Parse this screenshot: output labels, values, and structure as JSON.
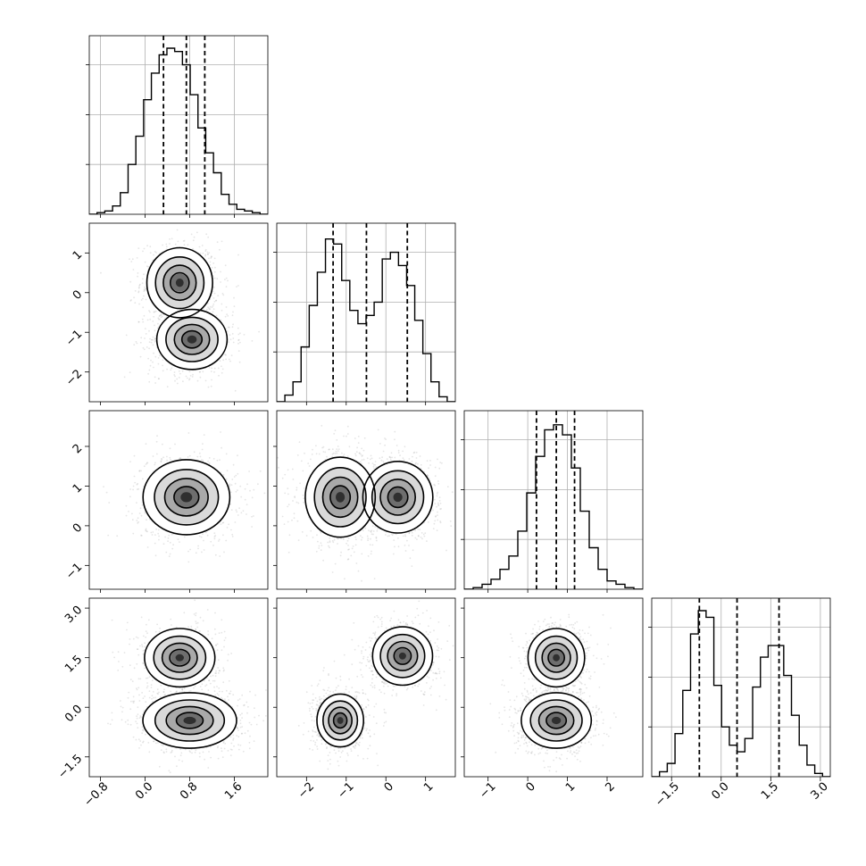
{
  "chart_data": {
    "type": "corner",
    "grid": true,
    "params": [
      {
        "xticks": [
          "−0.8",
          "0.0",
          "0.8",
          "1.6"
        ],
        "tick_values": [
          -0.8,
          0.0,
          0.8,
          1.6
        ],
        "range": [
          -1.0,
          2.2
        ],
        "quantiles": [
          0.33,
          0.74,
          1.07
        ],
        "hist": [
          0.0,
          0.01,
          0.02,
          0.05,
          0.13,
          0.3,
          0.47,
          0.69,
          0.85,
          0.96,
          1.0,
          0.98,
          0.9,
          0.72,
          0.52,
          0.37,
          0.25,
          0.12,
          0.06,
          0.03,
          0.02,
          0.01,
          0.0
        ]
      },
      {
        "xticks": [
          "−2",
          "−1",
          "0",
          "1"
        ],
        "yticks": [
          "1",
          "0",
          "−1",
          "−2"
        ],
        "tick_values": [
          -2,
          -1,
          0,
          1
        ],
        "range": [
          -2.75,
          1.75
        ],
        "quantiles": [
          -1.33,
          -0.49,
          0.54
        ],
        "hist": [
          0.0,
          0.04,
          0.12,
          0.33,
          0.58,
          0.78,
          0.98,
          0.95,
          0.73,
          0.55,
          0.47,
          0.52,
          0.6,
          0.86,
          0.9,
          0.82,
          0.7,
          0.49,
          0.29,
          0.12,
          0.03,
          0.0
        ]
      },
      {
        "xticks": [
          "−1",
          "0",
          "1",
          "2"
        ],
        "yticks": [
          "2",
          "1",
          "0",
          "−1"
        ],
        "tick_values": [
          -1,
          0,
          1,
          2
        ],
        "range": [
          -1.6,
          2.9
        ],
        "quantiles": [
          0.22,
          0.72,
          1.18
        ],
        "hist": [
          0.0,
          0.01,
          0.03,
          0.06,
          0.12,
          0.2,
          0.35,
          0.58,
          0.8,
          0.96,
          0.99,
          0.93,
          0.73,
          0.47,
          0.25,
          0.12,
          0.05,
          0.03,
          0.01,
          0.0
        ]
      },
      {
        "xticks": [
          "−1.5",
          "0.0",
          "1.5",
          "3.0"
        ],
        "yticks": [
          "3.0",
          "1.5",
          "0.0",
          "−1.5"
        ],
        "tick_values": [
          -1.5,
          0.0,
          1.5,
          3.0
        ],
        "range": [
          -2.1,
          3.3
        ],
        "quantiles": [
          -0.66,
          0.48,
          1.75
        ],
        "hist": [
          0.0,
          0.03,
          0.08,
          0.26,
          0.52,
          0.86,
          1.0,
          0.96,
          0.55,
          0.3,
          0.19,
          0.15,
          0.23,
          0.54,
          0.72,
          0.79,
          0.79,
          0.61,
          0.37,
          0.19,
          0.07,
          0.02,
          0.0
        ]
      }
    ],
    "scatter_panels": [
      {
        "row": 1,
        "col": 0,
        "modes": [
          {
            "x": 0.62,
            "y": 0.25,
            "sx": 0.28,
            "sy": 0.42,
            "peak": 0.82
          },
          {
            "x": 0.84,
            "y": -1.18,
            "sx": 0.3,
            "sy": 0.36,
            "peak": 1.0
          }
        ]
      },
      {
        "row": 2,
        "col": 0,
        "modes": [
          {
            "x": 0.74,
            "y": 0.72,
            "sx": 0.37,
            "sy": 0.45,
            "peak": 1.0
          }
        ]
      },
      {
        "row": 2,
        "col": 1,
        "modes": [
          {
            "x": -1.15,
            "y": 0.72,
            "sx": 0.42,
            "sy": 0.48,
            "peak": 0.95
          },
          {
            "x": 0.3,
            "y": 0.72,
            "sx": 0.42,
            "sy": 0.43,
            "peak": 0.95
          }
        ]
      },
      {
        "row": 3,
        "col": 0,
        "modes": [
          {
            "x": 0.62,
            "y": 1.5,
            "sx": 0.3,
            "sy": 0.42,
            "peak": 0.8
          },
          {
            "x": 0.8,
            "y": -0.4,
            "sx": 0.4,
            "sy": 0.4,
            "peak": 1.0
          }
        ]
      },
      {
        "row": 3,
        "col": 1,
        "modes": [
          {
            "x": -1.15,
            "y": -0.4,
            "sx": 0.28,
            "sy": 0.38,
            "peak": 1.0
          },
          {
            "x": 0.42,
            "y": 1.55,
            "sx": 0.36,
            "sy": 0.42,
            "peak": 0.8
          }
        ]
      },
      {
        "row": 3,
        "col": 2,
        "modes": [
          {
            "x": 0.72,
            "y": 1.5,
            "sx": 0.34,
            "sy": 0.42,
            "peak": 0.85
          },
          {
            "x": 0.72,
            "y": -0.4,
            "sx": 0.42,
            "sy": 0.4,
            "peak": 1.0
          }
        ]
      }
    ],
    "colors": {
      "scatter": "#8a8a8a",
      "contour": "#000000",
      "grid": "#b0b0b0"
    }
  }
}
